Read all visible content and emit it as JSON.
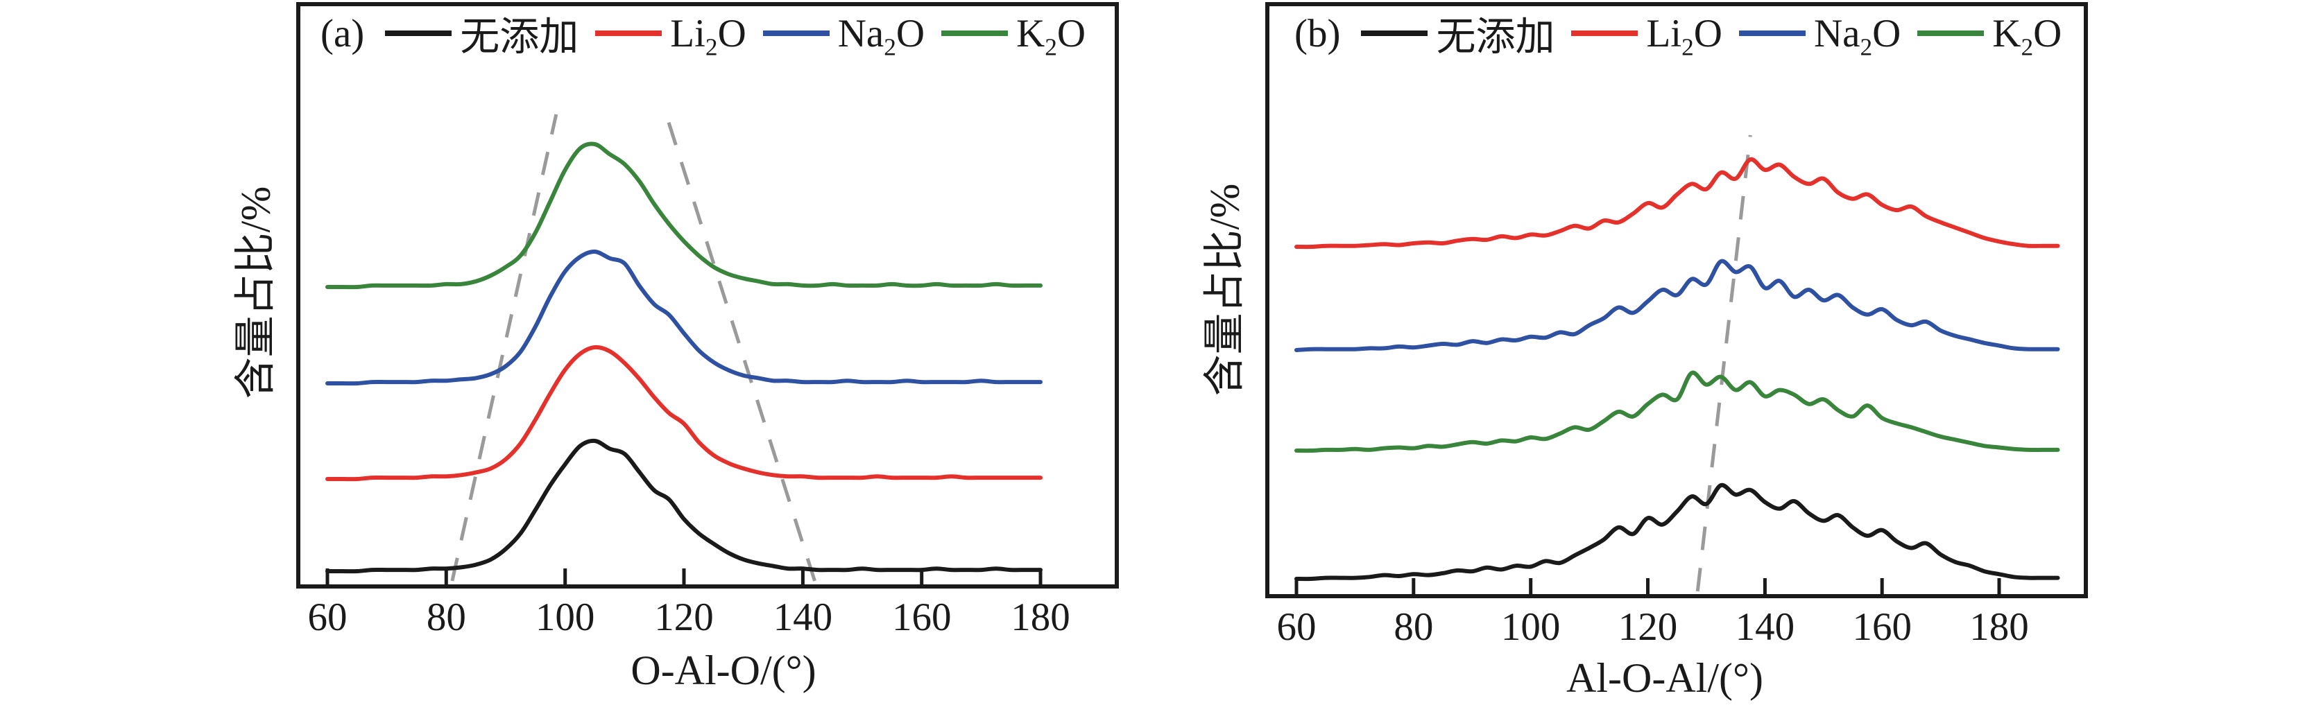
{
  "colors": {
    "black": "#1a1a1a",
    "red": "#e5312b",
    "blue": "#2f51a2",
    "green": "#3a853c",
    "guide_dash": "#9a9a9a",
    "frame": "#1a1a1a",
    "background": "#ffffff"
  },
  "panels": [
    {
      "tag": "(a)",
      "xlabel": "O-Al-O/(°)",
      "ylabel": "含量占比/%",
      "legend": [
        {
          "label": "无添加",
          "color": "#1a1a1a"
        },
        {
          "label": "Li₂O",
          "color": "#e5312b"
        },
        {
          "label": "Na₂O",
          "color": "#2f51a2"
        },
        {
          "label": "K₂O",
          "color": "#3a853c"
        }
      ]
    },
    {
      "tag": "(b)",
      "xlabel": "Al-O-Al/(°)",
      "ylabel": "含量占比/%",
      "legend": [
        {
          "label": "无添加",
          "color": "#1a1a1a"
        },
        {
          "label": "Li₂O",
          "color": "#e5312b"
        },
        {
          "label": "Na₂O",
          "color": "#2f51a2"
        },
        {
          "label": "K₂O",
          "color": "#3a853c"
        }
      ]
    }
  ],
  "chart_data": [
    {
      "type": "line",
      "title": "(a)",
      "xlabel": "O-Al-O/(°)",
      "ylabel": "含量占比/%",
      "x_ticks": [
        60,
        80,
        100,
        120,
        140,
        160,
        180
      ],
      "xlim": [
        55,
        193
      ],
      "x_start": 60,
      "x_step": 2.5,
      "x_end": 180,
      "y_units": "relative intensity (curves vertically offset, bottom to top)",
      "stack_order_bottom_to_top": [
        "无添加",
        "Li₂O",
        "Na₂O",
        "K₂O"
      ],
      "series": [
        {
          "name": "无添加",
          "color": "#1a1a1a",
          "peak_deg": 105,
          "values": [
            0,
            0,
            0,
            0.01,
            0.01,
            0.01,
            0.01,
            0.02,
            0.02,
            0.03,
            0.05,
            0.09,
            0.17,
            0.29,
            0.47,
            0.66,
            0.82,
            0.96,
            1,
            0.94,
            0.9,
            0.76,
            0.62,
            0.55,
            0.4,
            0.29,
            0.21,
            0.14,
            0.09,
            0.06,
            0.04,
            0.02,
            0.02,
            0.01,
            0.01,
            0.01,
            0.02,
            0.01,
            0.01,
            0.01,
            0.01,
            0.02,
            0.01,
            0.01,
            0.01,
            0.02,
            0.01,
            0.01,
            0.01
          ]
        },
        {
          "name": "Li₂O",
          "color": "#e5312b",
          "peak_deg": 105,
          "values": [
            0,
            0,
            0,
            0.01,
            0.01,
            0.01,
            0.01,
            0.02,
            0.02,
            0.03,
            0.05,
            0.08,
            0.15,
            0.27,
            0.45,
            0.65,
            0.83,
            0.95,
            1,
            0.97,
            0.88,
            0.76,
            0.62,
            0.5,
            0.42,
            0.28,
            0.18,
            0.12,
            0.08,
            0.05,
            0.03,
            0.02,
            0.02,
            0.01,
            0.01,
            0.01,
            0.01,
            0.02,
            0.01,
            0.01,
            0.01,
            0.01,
            0.02,
            0.01,
            0.01,
            0.01,
            0.01,
            0.01,
            0.01
          ]
        },
        {
          "name": "Na₂O",
          "color": "#2f51a2",
          "peak_deg": 105,
          "values": [
            0,
            0,
            0,
            0.01,
            0.01,
            0.01,
            0.01,
            0.02,
            0.02,
            0.03,
            0.04,
            0.07,
            0.13,
            0.24,
            0.43,
            0.66,
            0.85,
            0.96,
            1,
            0.95,
            0.91,
            0.74,
            0.6,
            0.52,
            0.38,
            0.25,
            0.16,
            0.1,
            0.06,
            0.04,
            0.02,
            0.02,
            0.01,
            0.01,
            0.01,
            0.02,
            0.01,
            0.01,
            0.01,
            0.02,
            0.01,
            0.01,
            0.01,
            0.01,
            0.02,
            0.01,
            0.01,
            0.01,
            0.01
          ]
        },
        {
          "name": "K₂O",
          "color": "#3a853c",
          "peak_deg": 104,
          "values": [
            0,
            0,
            0,
            0.01,
            0.01,
            0.01,
            0.01,
            0.01,
            0.02,
            0.02,
            0.04,
            0.08,
            0.14,
            0.22,
            0.38,
            0.6,
            0.82,
            0.97,
            1,
            0.93,
            0.86,
            0.74,
            0.58,
            0.44,
            0.32,
            0.22,
            0.14,
            0.09,
            0.06,
            0.04,
            0.02,
            0.02,
            0.01,
            0.01,
            0.02,
            0.01,
            0.01,
            0.01,
            0.02,
            0.01,
            0.01,
            0.02,
            0.01,
            0.01,
            0.01,
            0.02,
            0.01,
            0.01,
            0.01
          ]
        }
      ],
      "guide_lines": [
        {
          "style": "dashed",
          "x_at_bottom_deg": 81,
          "x_at_top_deg": 98.5
        },
        {
          "style": "dashed",
          "x_at_bottom_deg": 142,
          "x_at_top_deg": 117
        }
      ]
    },
    {
      "type": "line",
      "title": "(b)",
      "xlabel": "Al-O-Al/(°)",
      "ylabel": "含量占比/%",
      "x_ticks": [
        60,
        80,
        100,
        120,
        140,
        160,
        180
      ],
      "xlim": [
        55,
        195
      ],
      "x_start": 60,
      "x_step": 2.5,
      "x_end": 190,
      "y_units": "relative intensity (curves vertically offset, bottom to top)",
      "stack_order_bottom_to_top": [
        "无添加",
        "K₂O",
        "Na₂O",
        "Li₂O"
      ],
      "series": [
        {
          "name": "无添加",
          "color": "#1a1a1a",
          "peak_deg": 132.5,
          "values": [
            0,
            0,
            0.01,
            0.01,
            0.01,
            0.02,
            0.04,
            0.03,
            0.05,
            0.04,
            0.06,
            0.09,
            0.08,
            0.12,
            0.1,
            0.14,
            0.13,
            0.19,
            0.17,
            0.25,
            0.33,
            0.42,
            0.55,
            0.48,
            0.65,
            0.58,
            0.72,
            0.88,
            0.8,
            1,
            0.9,
            0.95,
            0.82,
            0.75,
            0.83,
            0.7,
            0.62,
            0.68,
            0.55,
            0.46,
            0.52,
            0.4,
            0.33,
            0.38,
            0.26,
            0.18,
            0.14,
            0.08,
            0.05,
            0.02,
            0.01,
            0.01,
            0.01
          ]
        },
        {
          "name": "K₂O",
          "color": "#3a853c",
          "peak_deg": 127.5,
          "values": [
            0,
            0,
            0.01,
            0.01,
            0.02,
            0.01,
            0.03,
            0.04,
            0.03,
            0.06,
            0.05,
            0.08,
            0.11,
            0.09,
            0.13,
            0.12,
            0.17,
            0.15,
            0.22,
            0.3,
            0.27,
            0.38,
            0.5,
            0.44,
            0.6,
            0.72,
            0.66,
            1,
            0.85,
            0.95,
            0.78,
            0.88,
            0.7,
            0.78,
            0.72,
            0.6,
            0.66,
            0.52,
            0.44,
            0.58,
            0.42,
            0.35,
            0.3,
            0.24,
            0.18,
            0.14,
            0.1,
            0.06,
            0.04,
            0.02,
            0.01,
            0.01,
            0.01
          ]
        },
        {
          "name": "Na₂O",
          "color": "#2f51a2",
          "peak_deg": 132.5,
          "values": [
            0,
            0.01,
            0.01,
            0.01,
            0.01,
            0.02,
            0.02,
            0.04,
            0.03,
            0.05,
            0.07,
            0.06,
            0.1,
            0.08,
            0.12,
            0.11,
            0.15,
            0.14,
            0.2,
            0.18,
            0.28,
            0.36,
            0.48,
            0.42,
            0.55,
            0.68,
            0.62,
            0.8,
            0.74,
            1,
            0.88,
            0.94,
            0.7,
            0.78,
            0.6,
            0.68,
            0.56,
            0.62,
            0.48,
            0.4,
            0.46,
            0.34,
            0.28,
            0.32,
            0.22,
            0.16,
            0.12,
            0.08,
            0.05,
            0.02,
            0.01,
            0.01,
            0.01
          ]
        },
        {
          "name": "Li₂O",
          "color": "#e5312b",
          "peak_deg": 137.5,
          "values": [
            0,
            0,
            0.01,
            0.01,
            0.01,
            0.02,
            0.03,
            0.02,
            0.04,
            0.05,
            0.04,
            0.07,
            0.09,
            0.08,
            0.12,
            0.1,
            0.14,
            0.13,
            0.18,
            0.24,
            0.21,
            0.3,
            0.28,
            0.38,
            0.5,
            0.45,
            0.6,
            0.72,
            0.66,
            0.85,
            0.78,
            1,
            0.88,
            0.94,
            0.8,
            0.72,
            0.78,
            0.62,
            0.55,
            0.6,
            0.48,
            0.42,
            0.46,
            0.35,
            0.28,
            0.22,
            0.16,
            0.1,
            0.06,
            0.03,
            0.01,
            0.01,
            0.01
          ]
        }
      ],
      "guide_lines": [
        {
          "style": "dashed",
          "x_at_bottom_deg": 128.5,
          "x_at_top_deg": 137.5
        }
      ]
    }
  ]
}
